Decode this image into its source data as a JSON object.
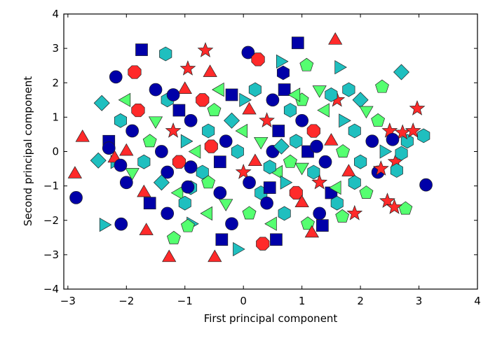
{
  "chart_data": {
    "type": "scatter",
    "title": "",
    "xlabel": "First principal component",
    "ylabel": "Second principal component",
    "xlim": [
      -3.07,
      4
    ],
    "ylim": [
      -4,
      4
    ],
    "xticks": [
      "−3",
      "−2",
      "−1",
      "0",
      "1",
      "2",
      "3",
      "4"
    ],
    "xtick_values": [
      -3,
      -2,
      -1,
      0,
      1,
      2,
      3,
      4
    ],
    "yticks": [
      "−4",
      "−3",
      "−2",
      "−1",
      "0",
      "1",
      "2",
      "3",
      "4"
    ],
    "ytick_values": [
      -4,
      -3,
      -2,
      -1,
      0,
      1,
      2,
      3,
      4
    ],
    "grid": false,
    "colors": {
      "blue": "#0000a8",
      "cyan": "#1fbfbf",
      "green": "#55ff70",
      "red": "#ff2a2a"
    },
    "classes": [
      {
        "marker": "circle",
        "color": "blue"
      },
      {
        "marker": "square",
        "color": "blue"
      },
      {
        "marker": "hexagon",
        "color": "cyan"
      },
      {
        "marker": "diamond",
        "color": "cyan"
      },
      {
        "marker": "triangle-right",
        "color": "cyan"
      },
      {
        "marker": "star",
        "color": "red"
      },
      {
        "marker": "triangle-up",
        "color": "red"
      },
      {
        "marker": "octagon",
        "color": "red"
      },
      {
        "marker": "pentagon",
        "color": "green"
      },
      {
        "marker": "triangle-left",
        "color": "green"
      },
      {
        "marker": "triangle-down",
        "color": "green"
      },
      {
        "marker": "hexagon",
        "color": "blue"
      }
    ],
    "points": [
      [
        -1.5,
        1.8,
        0
      ],
      [
        -1.0,
        1.8,
        6
      ],
      [
        -0.4,
        1.8,
        9
      ],
      [
        0.2,
        1.8,
        2
      ],
      [
        0.7,
        1.8,
        1
      ],
      [
        1.3,
        1.8,
        10
      ],
      [
        1.8,
        1.8,
        2
      ],
      [
        -2.0,
        1.5,
        9
      ],
      [
        -1.3,
        1.5,
        2
      ],
      [
        -0.7,
        1.5,
        7
      ],
      [
        0.0,
        1.5,
        4
      ],
      [
        0.5,
        1.5,
        0
      ],
      [
        1.0,
        1.5,
        8
      ],
      [
        1.6,
        1.5,
        5
      ],
      [
        2.0,
        1.5,
        3
      ],
      [
        -1.8,
        1.2,
        7
      ],
      [
        -1.1,
        1.2,
        1
      ],
      [
        -0.5,
        1.2,
        8
      ],
      [
        0.1,
        1.2,
        6
      ],
      [
        0.8,
        1.2,
        2
      ],
      [
        1.4,
        1.2,
        9
      ],
      [
        2.1,
        1.2,
        10
      ],
      [
        -2.1,
        0.9,
        2
      ],
      [
        -1.5,
        0.9,
        10
      ],
      [
        -0.9,
        0.9,
        0
      ],
      [
        -0.2,
        0.9,
        3
      ],
      [
        0.4,
        0.9,
        5
      ],
      [
        1.0,
        0.9,
        0
      ],
      [
        1.7,
        0.9,
        4
      ],
      [
        2.3,
        0.9,
        8
      ],
      [
        -1.9,
        0.6,
        0
      ],
      [
        -1.2,
        0.6,
        5
      ],
      [
        -0.6,
        0.6,
        2
      ],
      [
        0.0,
        0.6,
        9
      ],
      [
        0.6,
        0.6,
        1
      ],
      [
        1.2,
        0.6,
        7
      ],
      [
        1.9,
        0.6,
        2
      ],
      [
        2.5,
        0.6,
        5
      ],
      [
        -2.3,
        0.3,
        1
      ],
      [
        -1.6,
        0.3,
        8
      ],
      [
        -1.0,
        0.3,
        4
      ],
      [
        -0.3,
        0.3,
        0
      ],
      [
        0.3,
        0.3,
        10
      ],
      [
        0.9,
        0.3,
        2
      ],
      [
        1.5,
        0.3,
        6
      ],
      [
        2.2,
        0.3,
        0
      ],
      [
        2.8,
        0.3,
        2
      ],
      [
        -2.0,
        0.0,
        6
      ],
      [
        -1.4,
        0.0,
        0
      ],
      [
        -0.8,
        0.0,
        9
      ],
      [
        -0.1,
        0.0,
        2
      ],
      [
        0.5,
        0.0,
        0
      ],
      [
        1.1,
        0.0,
        1
      ],
      [
        1.7,
        0.0,
        8
      ],
      [
        2.4,
        0.0,
        4
      ],
      [
        -2.2,
        -0.3,
        4
      ],
      [
        -1.7,
        -0.3,
        2
      ],
      [
        -1.1,
        -0.3,
        7
      ],
      [
        -0.4,
        -0.3,
        1
      ],
      [
        0.2,
        -0.3,
        6
      ],
      [
        0.8,
        -0.3,
        8
      ],
      [
        1.4,
        -0.3,
        0
      ],
      [
        2.0,
        -0.3,
        2
      ],
      [
        2.6,
        -0.3,
        5
      ],
      [
        -1.9,
        -0.6,
        10
      ],
      [
        -1.3,
        -0.6,
        0
      ],
      [
        -0.7,
        -0.6,
        2
      ],
      [
        0.0,
        -0.6,
        5
      ],
      [
        0.6,
        -0.6,
        9
      ],
      [
        1.2,
        -0.6,
        2
      ],
      [
        1.8,
        -0.6,
        6
      ],
      [
        2.3,
        -0.6,
        0
      ],
      [
        -2.0,
        -0.9,
        0
      ],
      [
        -1.4,
        -0.9,
        3
      ],
      [
        -0.6,
        -0.9,
        8
      ],
      [
        0.1,
        -0.9,
        0
      ],
      [
        0.7,
        -0.9,
        4
      ],
      [
        1.3,
        -0.9,
        5
      ],
      [
        1.9,
        -0.9,
        2
      ],
      [
        -1.7,
        -1.2,
        6
      ],
      [
        -1.1,
        -1.2,
        9
      ],
      [
        -0.4,
        -1.2,
        0
      ],
      [
        0.3,
        -1.2,
        2
      ],
      [
        0.9,
        -1.2,
        7
      ],
      [
        1.5,
        -1.2,
        1
      ],
      [
        2.1,
        -1.2,
        8
      ],
      [
        -1.6,
        -1.5,
        1
      ],
      [
        -1.0,
        -1.5,
        2
      ],
      [
        -0.3,
        -1.5,
        10
      ],
      [
        0.4,
        -1.5,
        0
      ],
      [
        1.0,
        -1.5,
        6
      ],
      [
        1.6,
        -1.5,
        2
      ],
      [
        -1.3,
        -1.8,
        0
      ],
      [
        -0.6,
        -1.8,
        9
      ],
      [
        0.1,
        -1.8,
        8
      ],
      [
        0.7,
        -1.8,
        2
      ],
      [
        1.3,
        -1.8,
        0
      ],
      [
        1.9,
        -1.8,
        5
      ],
      [
        -0.9,
        -2.1,
        4
      ],
      [
        -0.2,
        -2.1,
        0
      ],
      [
        0.5,
        -2.1,
        9
      ],
      [
        1.1,
        -2.1,
        8
      ],
      [
        -1.2,
        1.65,
        0
      ],
      [
        -0.2,
        1.65,
        1
      ],
      [
        0.9,
        1.65,
        9
      ],
      [
        1.5,
        1.65,
        2
      ],
      [
        -0.55,
        0.15,
        7
      ],
      [
        0.65,
        0.15,
        3
      ],
      [
        1.25,
        0.15,
        0
      ],
      [
        -0.9,
        -0.45,
        0
      ],
      [
        0.45,
        -0.45,
        2
      ],
      [
        1.0,
        -0.45,
        10
      ],
      [
        -0.9,
        -1.05,
        2
      ],
      [
        0.45,
        -1.05,
        1
      ],
      [
        1.6,
        -1.05,
        9
      ],
      [
        -1.74,
        2.96,
        1
      ],
      [
        -1.33,
        2.84,
        2
      ],
      [
        -0.65,
        2.94,
        5
      ],
      [
        1.57,
        3.23,
        6
      ],
      [
        0.93,
        3.16,
        1
      ],
      [
        0.08,
        2.88,
        0
      ],
      [
        0.25,
        2.68,
        7
      ],
      [
        2.7,
        2.31,
        3
      ],
      [
        2.37,
        1.88,
        8
      ],
      [
        2.97,
        1.25,
        5
      ],
      [
        3.08,
        0.46,
        2
      ],
      [
        3.12,
        -0.97,
        0
      ],
      [
        2.77,
        -1.66,
        8
      ],
      [
        2.46,
        -1.44,
        5
      ],
      [
        2.58,
        -1.62,
        5
      ],
      [
        -2.88,
        -0.66,
        6
      ],
      [
        -2.86,
        -1.34,
        0
      ],
      [
        -2.75,
        0.4,
        6
      ],
      [
        -2.48,
        -0.26,
        3
      ],
      [
        -2.39,
        -2.13,
        4
      ],
      [
        -2.09,
        -2.11,
        0
      ],
      [
        -2.42,
        1.41,
        3
      ],
      [
        -2.18,
        2.17,
        0
      ],
      [
        -1.86,
        2.31,
        7
      ],
      [
        -1.27,
        -3.09,
        6
      ],
      [
        -0.49,
        -3.09,
        6
      ],
      [
        -0.11,
        -2.84,
        4
      ],
      [
        0.56,
        -2.56,
        1
      ],
      [
        0.33,
        -2.68,
        7
      ],
      [
        -0.37,
        -2.56,
        1
      ],
      [
        -1.19,
        -2.52,
        8
      ],
      [
        -0.95,
        -2.17,
        8
      ],
      [
        -1.66,
        -2.31,
        6
      ],
      [
        1.35,
        -2.15,
        1
      ],
      [
        1.17,
        -2.38,
        6
      ],
      [
        1.69,
        -1.89,
        8
      ],
      [
        1.63,
        2.45,
        4
      ],
      [
        1.08,
        2.51,
        8
      ],
      [
        0.68,
        2.29,
        11
      ],
      [
        -0.95,
        2.41,
        5
      ],
      [
        0.63,
        2.62,
        4
      ],
      [
        -0.57,
        2.29,
        6
      ],
      [
        -0.95,
        -1.03,
        0
      ],
      [
        2.72,
        0.55,
        5
      ],
      [
        2.55,
        0.35,
        0
      ],
      [
        2.9,
        0.6,
        5
      ],
      [
        2.62,
        -0.55,
        2
      ],
      [
        2.35,
        -0.5,
        5
      ],
      [
        2.7,
        -0.05,
        2
      ],
      [
        -2.3,
        0.1,
        0
      ],
      [
        -2.2,
        -0.2,
        6
      ],
      [
        -2.1,
        -0.4,
        0
      ]
    ]
  }
}
